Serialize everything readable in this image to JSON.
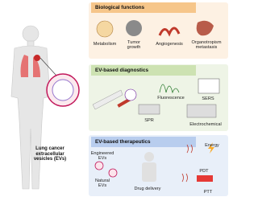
{
  "figure": {
    "label": "Lung cancer extracellular vesicles (EVs)"
  },
  "panels": [
    {
      "title": "Biological functions",
      "items": [
        "Metabolism",
        "Tumor growth",
        "Angiogenesis",
        "Organotropism metastasis"
      ]
    },
    {
      "title": "EV-based diagnostics",
      "items": [
        "Fluorescence",
        "SERS",
        "SPR",
        "Electrochemical"
      ]
    },
    {
      "title": "EV-based therapeutics",
      "items": [
        "Engineered EVs",
        "Natural EVs",
        "Drug delivery",
        "PDT",
        "Energy",
        "PTT"
      ]
    }
  ]
}
